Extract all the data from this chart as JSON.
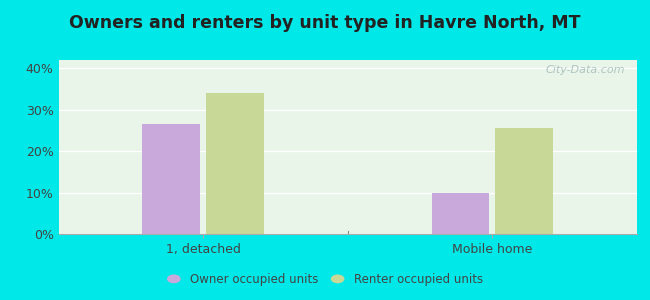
{
  "title": "Owners and renters by unit type in Havre North, MT",
  "categories": [
    "1, detached",
    "Mobile home"
  ],
  "owner_values": [
    26.5,
    10.0
  ],
  "renter_values": [
    34.0,
    25.5
  ],
  "owner_color": "#c9a8dc",
  "renter_color": "#c8d896",
  "background_color": "#e8f5e8",
  "outer_background": "#00e8e8",
  "ylim": [
    0,
    42
  ],
  "yticks": [
    0,
    10,
    20,
    30,
    40
  ],
  "ytick_labels": [
    "0%",
    "10%",
    "20%",
    "30%",
    "40%"
  ],
  "bar_width": 0.1,
  "legend_owner": "Owner occupied units",
  "legend_renter": "Renter occupied units",
  "watermark": "City-Data.com",
  "title_fontsize": 12.5
}
